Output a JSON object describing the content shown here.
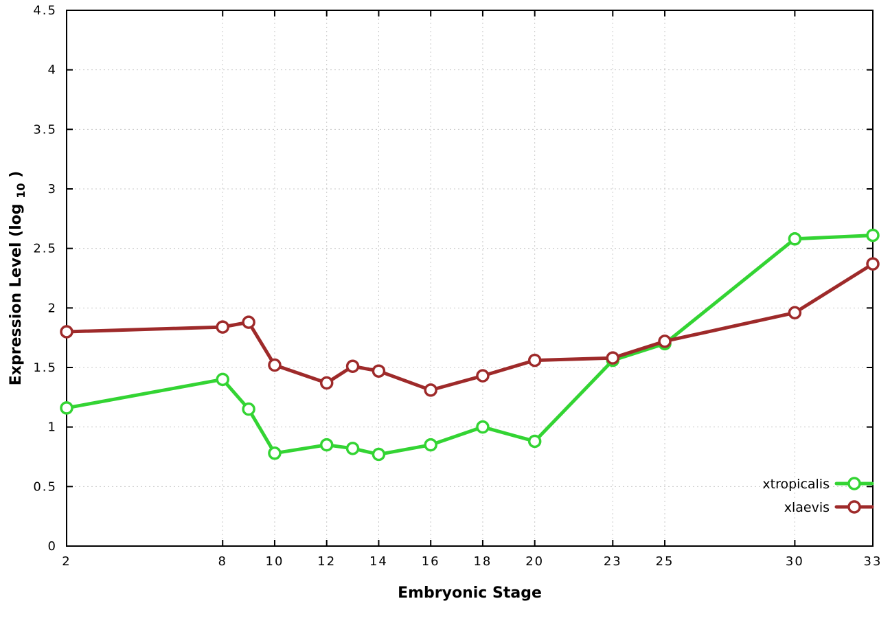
{
  "chart_data": {
    "type": "line",
    "title": "",
    "xlabel": "Embryonic Stage",
    "ylabel": "Expression Level (log10)",
    "ylabel_parts": {
      "prefix": "Expression Level (log",
      "sub": "10",
      "suffix": ")"
    },
    "x": [
      2,
      8,
      9,
      10,
      12,
      13,
      14,
      16,
      18,
      20,
      23,
      25,
      30,
      33
    ],
    "series": [
      {
        "name": "xtropicalis",
        "color": "#33d433",
        "values": [
          1.16,
          1.4,
          1.15,
          0.78,
          0.85,
          0.82,
          0.77,
          0.85,
          1.0,
          0.88,
          1.56,
          1.7,
          2.58,
          2.61
        ]
      },
      {
        "name": "xlaevis",
        "color": "#9e2a2a",
        "values": [
          1.8,
          1.84,
          1.88,
          1.52,
          1.37,
          1.51,
          1.47,
          1.31,
          1.43,
          1.56,
          1.58,
          1.72,
          1.96,
          2.37
        ]
      }
    ],
    "xlim": [
      2,
      33
    ],
    "ylim": [
      0,
      4.5
    ],
    "xticks": {
      "values": [
        2,
        8,
        10,
        12,
        14,
        16,
        18,
        20,
        23,
        25,
        30,
        33
      ],
      "labels": [
        "2",
        "8",
        "10",
        "12",
        "14",
        "16",
        "18",
        "20",
        "23",
        "25",
        "30",
        "33"
      ]
    },
    "yticks": {
      "values": [
        0,
        0.5,
        1,
        1.5,
        2,
        2.5,
        3,
        3.5,
        4,
        4.5
      ],
      "labels": [
        "0",
        "0.5",
        "1",
        "1.5",
        "2",
        "2.5",
        "3",
        "3.5",
        "4",
        "4.5"
      ]
    },
    "grid": true,
    "legend_position": "bottom-right",
    "marker": "open-circle",
    "marker_fill": "#ffffff",
    "grid_color": "#c8c8c8",
    "border_color": "#000000",
    "background": "#ffffff"
  }
}
